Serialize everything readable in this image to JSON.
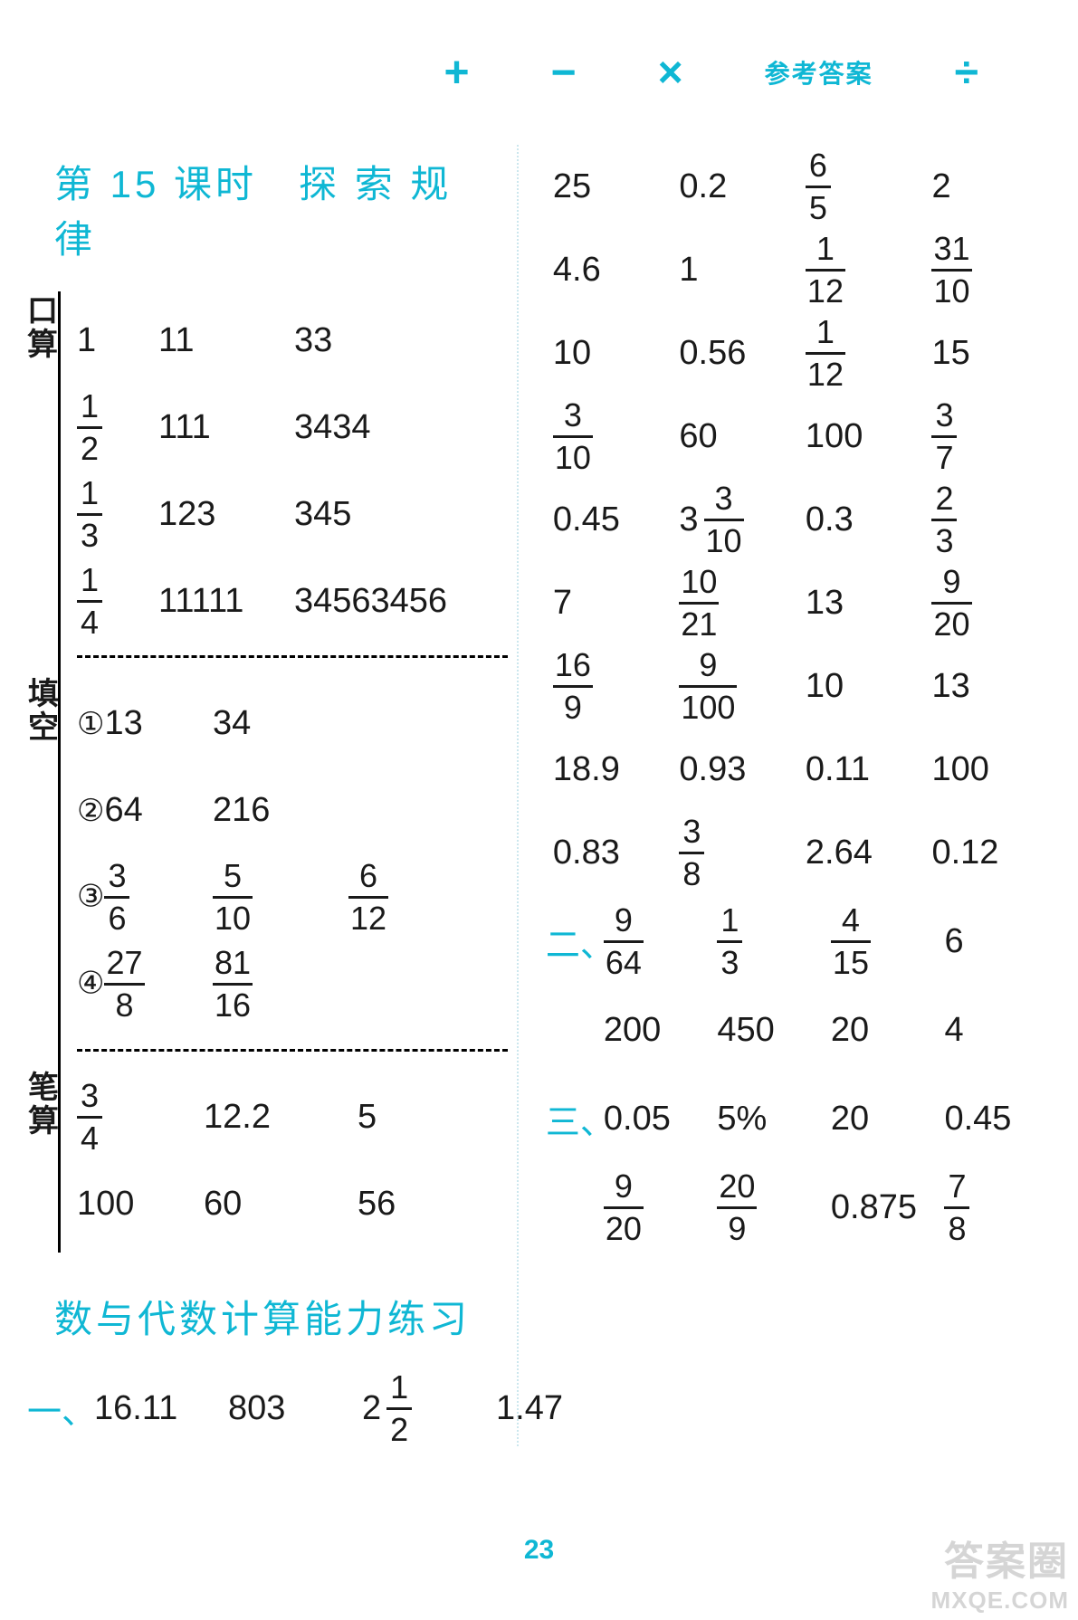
{
  "header": {
    "ops": [
      "+",
      "−",
      "×",
      "÷"
    ],
    "label": "参考答案"
  },
  "left": {
    "lesson_title": "第 15 课时　探 索 规 律",
    "kousuan": {
      "label": "口算",
      "rows": [
        [
          "1",
          "11",
          "33"
        ],
        [
          {
            "frac": [
              1,
              2
            ]
          },
          "111",
          "3434"
        ],
        [
          {
            "frac": [
              1,
              3
            ]
          },
          "123",
          "345"
        ],
        [
          {
            "frac": [
              1,
              4
            ]
          },
          "11111",
          "34563456"
        ]
      ],
      "col_widths": [
        "90px",
        "150px",
        "220px"
      ]
    },
    "tiankong": {
      "label": "填空",
      "rows": [
        {
          "idx": "①",
          "cells": [
            "13",
            "34"
          ]
        },
        {
          "idx": "②",
          "cells": [
            "64",
            "216"
          ]
        },
        {
          "idx": "③",
          "cells": [
            {
              "frac": [
                3,
                6
              ]
            },
            {
              "frac": [
                5,
                10
              ]
            },
            {
              "frac": [
                6,
                12
              ]
            }
          ]
        },
        {
          "idx": "④",
          "cells": [
            {
              "frac": [
                27,
                8
              ]
            },
            {
              "frac": [
                81,
                16
              ]
            }
          ]
        }
      ],
      "col_widths": [
        "150px",
        "150px",
        "120px"
      ]
    },
    "bisuan": {
      "label": "笔算",
      "rows": [
        [
          {
            "frac": [
              3,
              4
            ]
          },
          "12.2",
          "5"
        ],
        [
          "100",
          "60",
          "56"
        ]
      ],
      "col_widths": [
        "140px",
        "170px",
        "120px"
      ]
    },
    "section2_title": "数与代数计算能力练习",
    "section2_row": {
      "mark": "一、",
      "cells": [
        "16.11",
        "803",
        {
          "mixed": [
            2,
            1,
            2
          ]
        },
        "1.47"
      ]
    }
  },
  "right": {
    "grid": [
      [
        "25",
        "0.2",
        {
          "frac": [
            6,
            5
          ]
        },
        "2"
      ],
      [
        "4.6",
        "1",
        {
          "frac": [
            1,
            12
          ]
        },
        {
          "frac": [
            31,
            10
          ]
        }
      ],
      [
        "10",
        "0.56",
        {
          "frac": [
            1,
            12
          ]
        },
        "15"
      ],
      [
        {
          "frac": [
            3,
            10
          ]
        },
        "60",
        "100",
        {
          "frac": [
            3,
            7
          ]
        }
      ],
      [
        "0.45",
        {
          "mixed": [
            3,
            3,
            10
          ]
        },
        "0.3",
        {
          "frac": [
            2,
            3
          ]
        }
      ],
      [
        "7",
        {
          "frac": [
            10,
            21
          ]
        },
        "13",
        {
          "frac": [
            9,
            20
          ]
        }
      ],
      [
        {
          "frac": [
            16,
            9
          ]
        },
        {
          "frac": [
            9,
            100
          ]
        },
        "10",
        "13"
      ],
      [
        "18.9",
        "0.93",
        "0.11",
        "100"
      ],
      [
        "0.83",
        {
          "frac": [
            3,
            8
          ]
        },
        "2.64",
        "0.12"
      ]
    ],
    "mark_rows": [
      {
        "mark": "二、",
        "cells": [
          {
            "frac": [
              9,
              64
            ]
          },
          {
            "frac": [
              1,
              3
            ]
          },
          {
            "frac": [
              4,
              15
            ]
          },
          "6"
        ]
      },
      {
        "mark": "",
        "cells": [
          "200",
          "450",
          "20",
          "4"
        ]
      },
      {
        "mark": "三、",
        "cells": [
          "0.05",
          "5%",
          "20",
          "0.45"
        ]
      },
      {
        "mark": "",
        "cells": [
          {
            "frac": [
              9,
              20
            ]
          },
          {
            "frac": [
              20,
              9
            ]
          },
          "0.875",
          {
            "frac": [
              7,
              8
            ]
          }
        ]
      }
    ]
  },
  "page_number": "23",
  "watermark": {
    "line1": "答案圈",
    "line2": "MXQE.COM"
  },
  "colors": {
    "accent": "#0fb7d4",
    "text": "#1a1a1a",
    "bg": "#ffffff"
  },
  "typography": {
    "title_fontsize": 42,
    "body_fontsize": 38,
    "header_fontsize": 28
  }
}
